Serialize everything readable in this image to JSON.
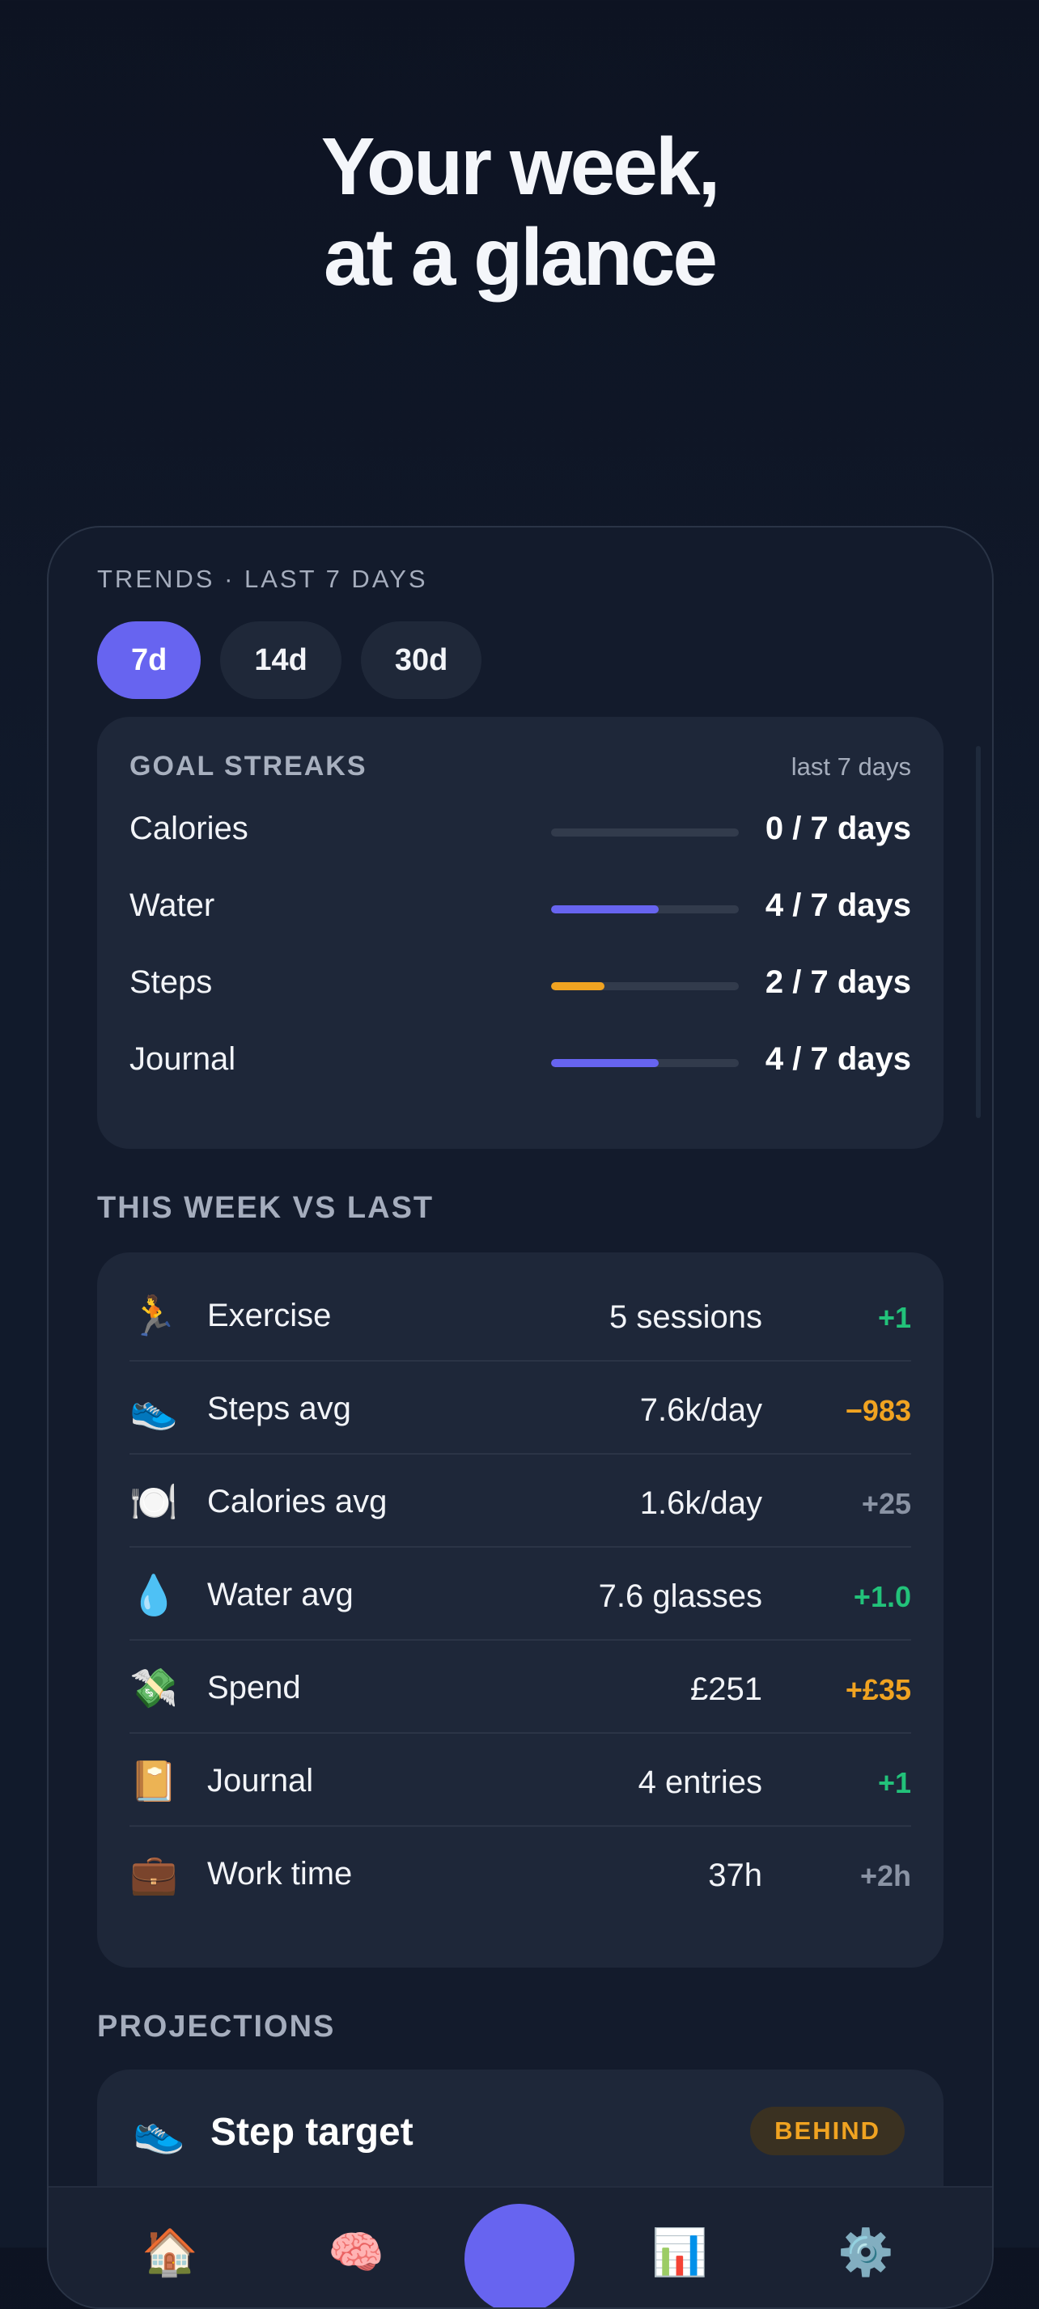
{
  "headline": {
    "line1": "Your week,",
    "line2": "at a glance"
  },
  "screen": {
    "caption": "TRENDS · LAST 7 DAYS",
    "ranges": [
      {
        "label": "7d",
        "active": true
      },
      {
        "label": "14d",
        "active": false
      },
      {
        "label": "30d",
        "active": false
      }
    ]
  },
  "goal_streaks": {
    "title": "GOAL STREAKS",
    "range": "last 7 days",
    "rows": [
      {
        "name": "Calories",
        "value": "0 / 7 days",
        "days": 0,
        "total": 7,
        "color": "#6764f0"
      },
      {
        "name": "Water",
        "value": "4 / 7 days",
        "days": 4,
        "total": 7,
        "color": "#6764f0"
      },
      {
        "name": "Steps",
        "value": "2 / 7 days",
        "days": 2,
        "total": 7,
        "color": "#f0a321"
      },
      {
        "name": "Journal",
        "value": "4 / 7 days",
        "days": 4,
        "total": 7,
        "color": "#6764f0"
      }
    ]
  },
  "week_vs_last": {
    "title": "THIS WEEK VS LAST",
    "rows": [
      {
        "icon": "🏃",
        "icon_name": "runner-icon",
        "label": "Exercise",
        "value": "5 sessions",
        "delta": "+1",
        "delta_color": "#22c27a"
      },
      {
        "icon": "👟",
        "icon_name": "sneaker-icon",
        "label": "Steps avg",
        "value": "7.6k/day",
        "delta": "−983",
        "delta_color": "#f0a321"
      },
      {
        "icon": "🍽️",
        "icon_name": "plate-icon",
        "label": "Calories avg",
        "value": "1.6k/day",
        "delta": "+25",
        "delta_color": "#8a93a4"
      },
      {
        "icon": "💧",
        "icon_name": "droplet-icon",
        "label": "Water avg",
        "value": "7.6 glasses",
        "delta": "+1.0",
        "delta_color": "#22c27a"
      },
      {
        "icon": "💸",
        "icon_name": "money-wings-icon",
        "label": "Spend",
        "value": "£251",
        "delta": "+£35",
        "delta_color": "#f0a321"
      },
      {
        "icon": "📔",
        "icon_name": "notebook-icon",
        "label": "Journal",
        "value": "4 entries",
        "delta": "+1",
        "delta_color": "#22c27a"
      },
      {
        "icon": "💼",
        "icon_name": "briefcase-icon",
        "label": "Work time",
        "value": "37h",
        "delta": "+2h",
        "delta_color": "#8a93a4"
      }
    ]
  },
  "projections": {
    "title": "PROJECTIONS",
    "card": {
      "icon": "👟",
      "title": "Step target",
      "badge": "BEHIND"
    }
  },
  "tabbar": {
    "tabs": [
      {
        "icon": "🏠",
        "icon_name": "home-icon"
      },
      {
        "icon": "🧠",
        "icon_name": "brain-icon"
      },
      {
        "icon": "",
        "icon_name": "add-fab"
      },
      {
        "icon": "📊",
        "icon_name": "chart-icon"
      },
      {
        "icon": "⚙️",
        "icon_name": "gear-icon"
      }
    ]
  },
  "colors": {
    "accent": "#6764f0",
    "warning": "#f0a321",
    "positive": "#22c27a",
    "neutral": "#8a93a4"
  }
}
